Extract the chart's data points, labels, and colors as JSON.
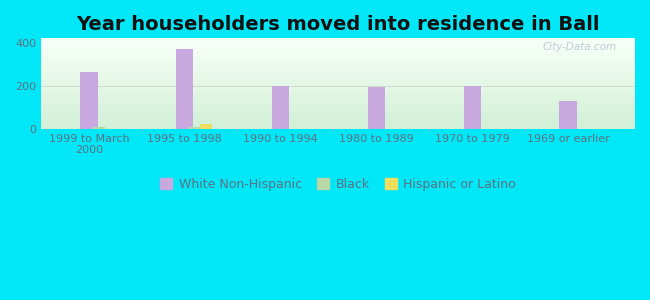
{
  "title": "Year householders moved into residence in Ball",
  "categories": [
    "1999 to March\n2000",
    "1995 to 1998",
    "1990 to 1994",
    "1980 to 1989",
    "1970 to 1979",
    "1969 or earlier"
  ],
  "white_non_hispanic": [
    265,
    370,
    200,
    193,
    198,
    130
  ],
  "black": [
    8,
    10,
    0,
    0,
    0,
    0
  ],
  "hispanic_or_latino": [
    0,
    22,
    0,
    0,
    0,
    0
  ],
  "white_color": "#c9a8e0",
  "black_color": "#b8d8a8",
  "hispanic_color": "#eedf60",
  "bg_outer": "#00e8f8",
  "ylim": [
    0,
    420
  ],
  "yticks": [
    0,
    200,
    400
  ],
  "bar_width": 0.18,
  "title_fontsize": 14,
  "tick_fontsize": 8,
  "legend_fontsize": 9
}
